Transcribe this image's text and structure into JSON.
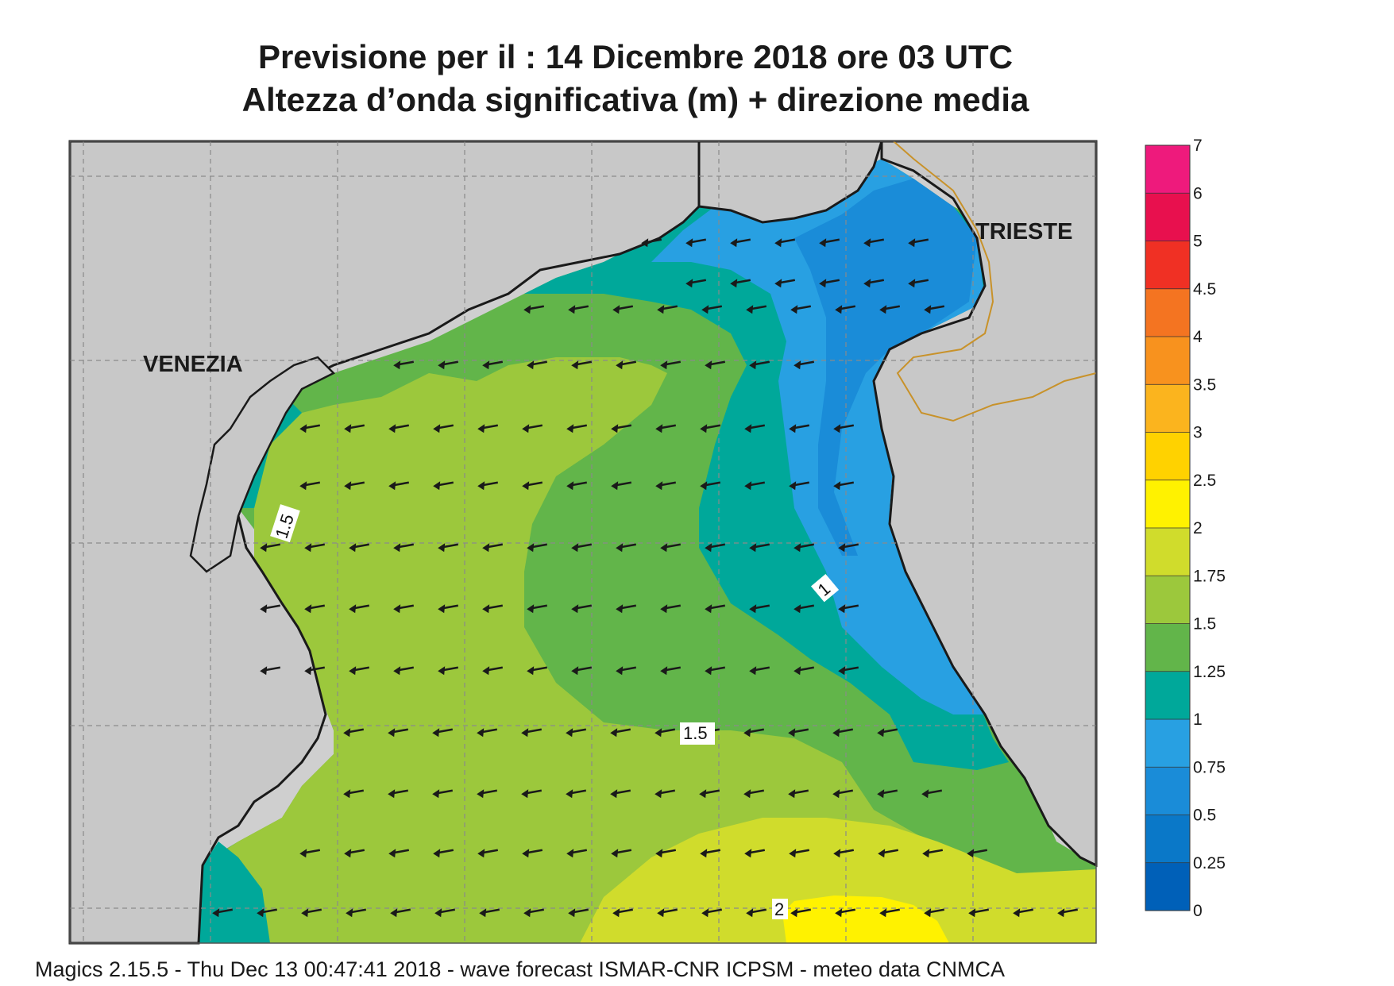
{
  "title": {
    "line1": "Previsione per il  :  14 Dicembre  2018   ore 03 UTC",
    "line2": "Altezza d’onda significativa (m) + direzione media"
  },
  "cities": {
    "venezia": "VENEZIA",
    "trieste": "TRIESTE"
  },
  "contour_labels": {
    "west": "1.5",
    "center": "1.5",
    "east": "1",
    "south": "2"
  },
  "colorbar": {
    "labels": [
      "0",
      "0.25",
      "0.5",
      "0.75",
      "1",
      "1.25",
      "1.5",
      "1.75",
      "2",
      "2.5",
      "3",
      "3.5",
      "4",
      "4.5",
      "5",
      "6",
      "7"
    ],
    "colors": [
      "#0060b8",
      "#0a78c8",
      "#1a8cd8",
      "#28a0e2",
      "#00a89a",
      "#62b54a",
      "#9cc83c",
      "#d0dc2c",
      "#fff200",
      "#ffd200",
      "#fbb41e",
      "#f8921e",
      "#f47421",
      "#f03024",
      "#e8104e",
      "#ee1a7c"
    ]
  },
  "wave_direction": "W-SW (arrows pointing left)",
  "footer": "Magics 2.15.5 - Thu Dec 13 00:47:41 2018 - wave forecast  ISMAR-CNR  ICPSM - meteo data   CNMCA"
}
